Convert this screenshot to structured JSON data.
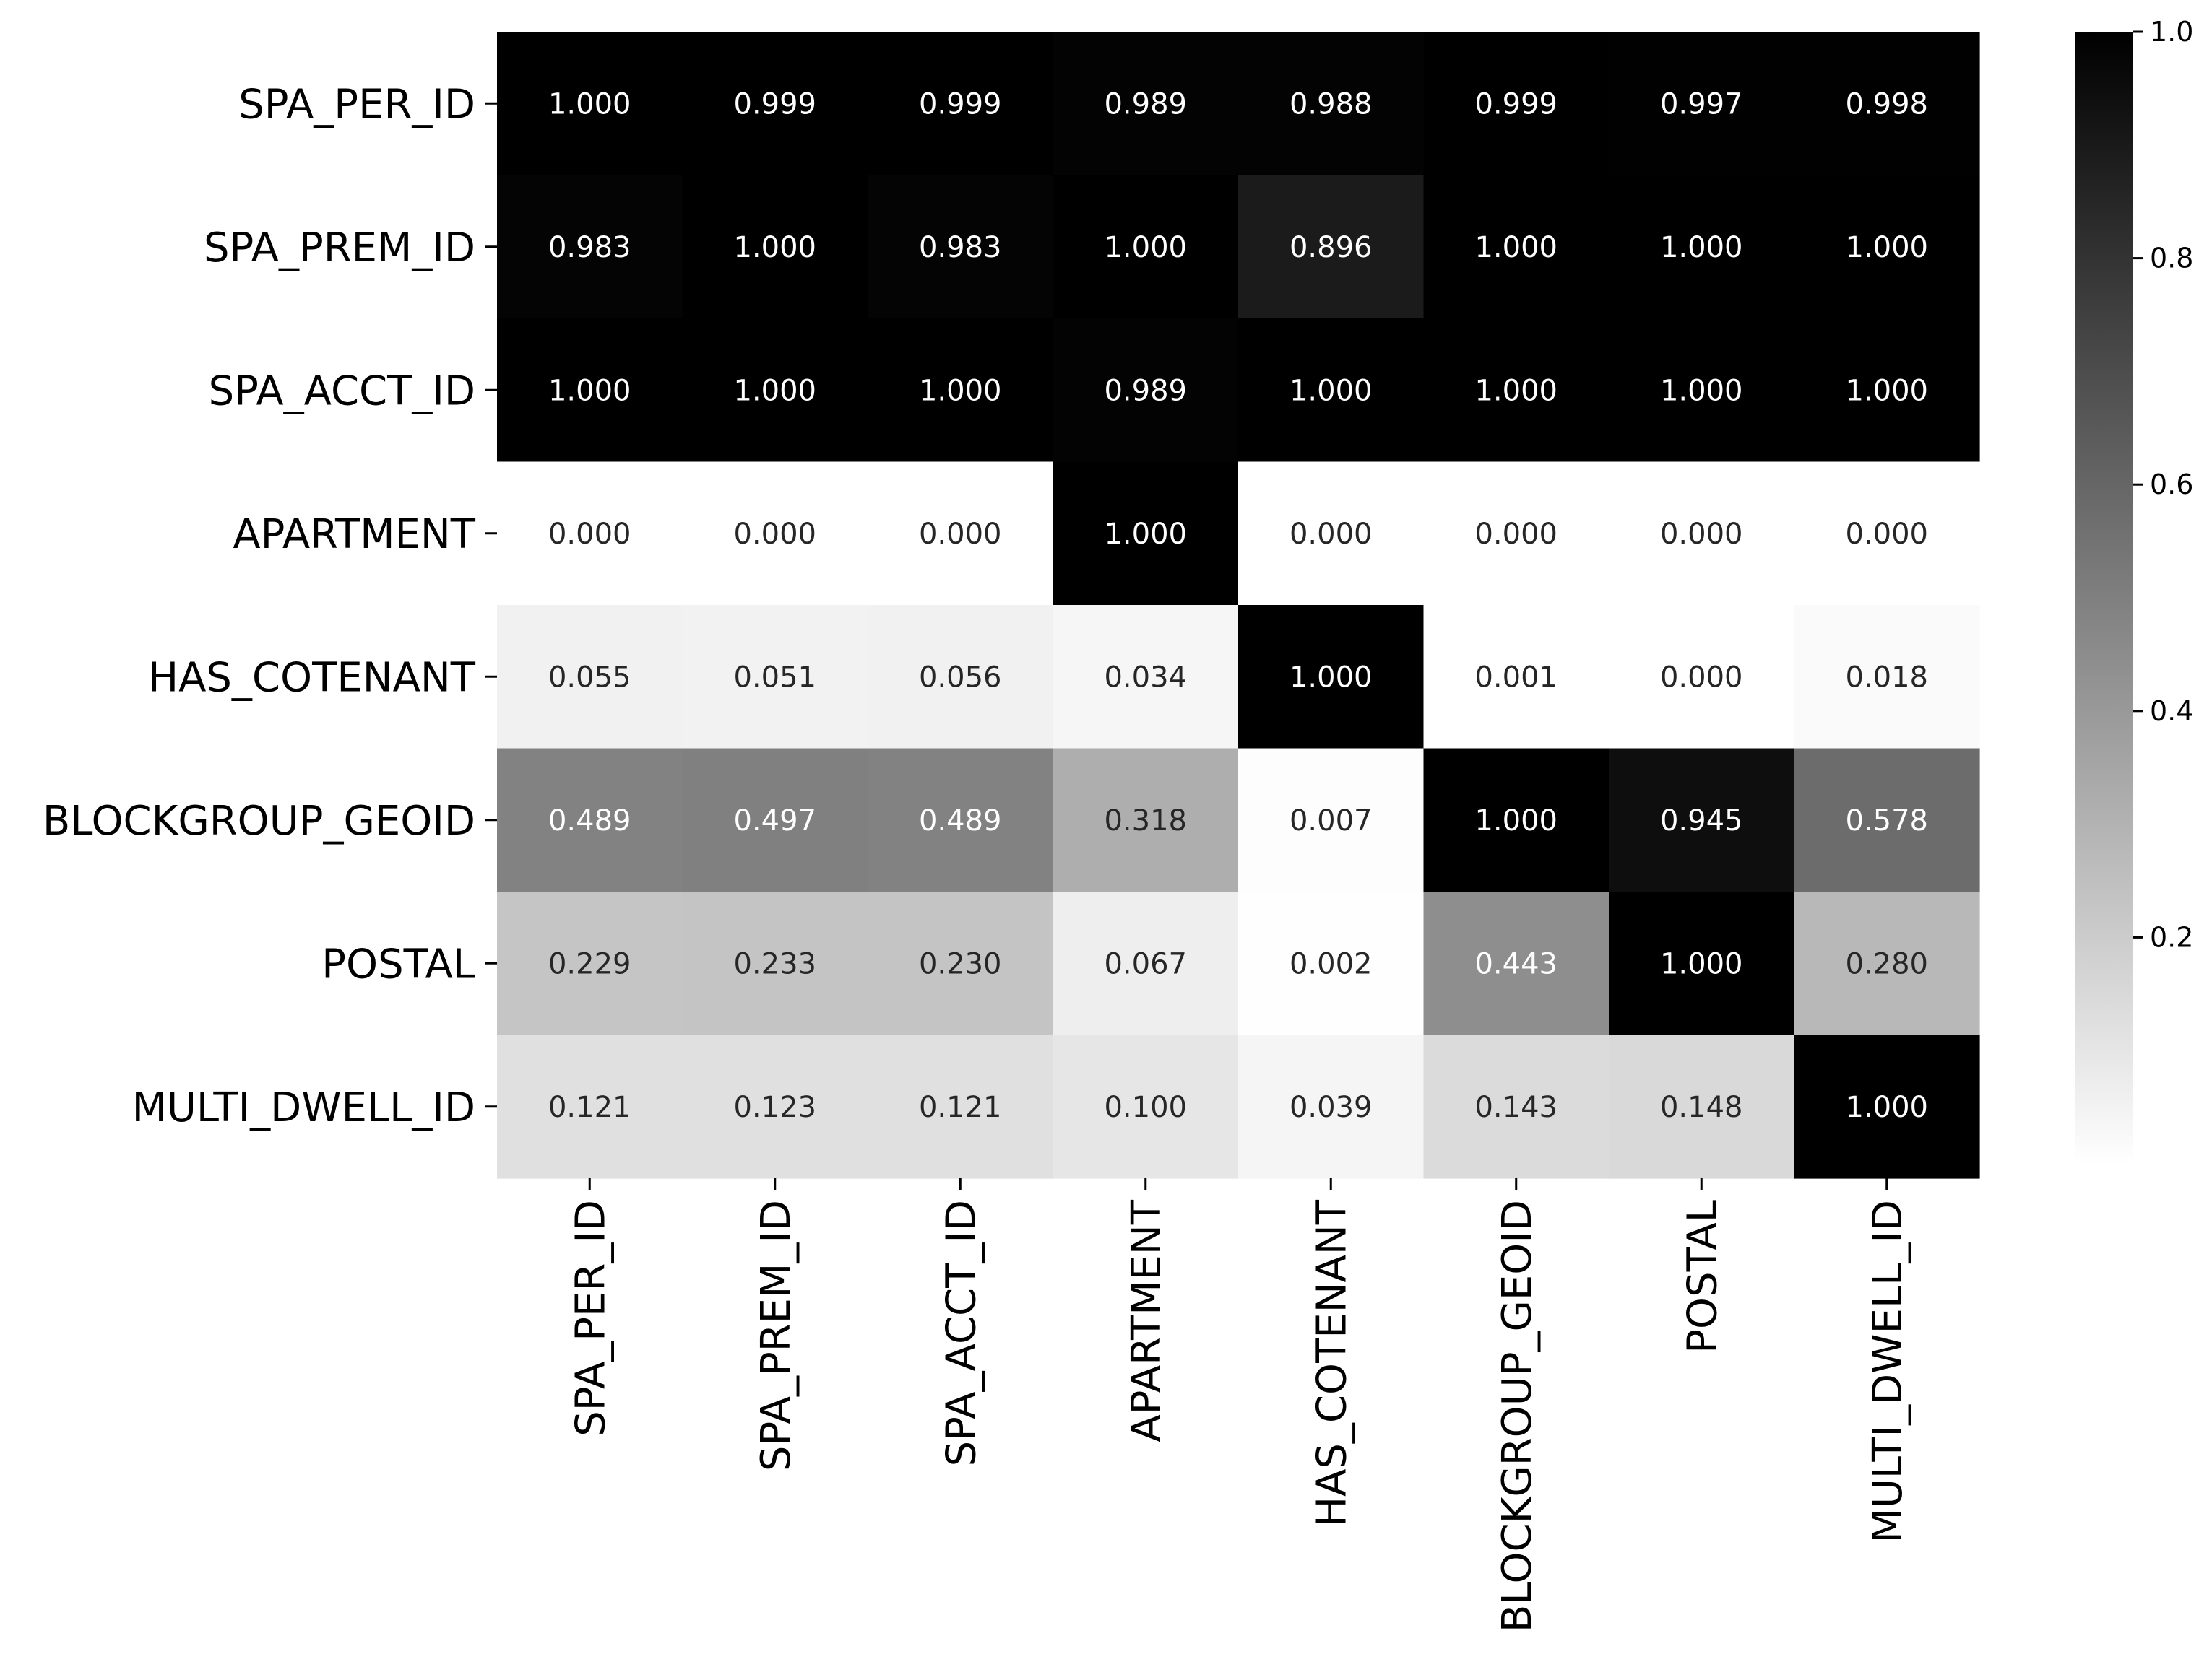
{
  "chart_data": {
    "type": "heatmap",
    "title": "",
    "xlabel": "",
    "ylabel": "",
    "rows": [
      "SPA_PER_ID",
      "SPA_PREM_ID",
      "SPA_ACCT_ID",
      "APARTMENT",
      "HAS_COTENANT",
      "BLOCKGROUP_GEOID",
      "POSTAL",
      "MULTI_DWELL_ID"
    ],
    "columns": [
      "SPA_PER_ID",
      "SPA_PREM_ID",
      "SPA_ACCT_ID",
      "APARTMENT",
      "HAS_COTENANT",
      "BLOCKGROUP_GEOID",
      "POSTAL",
      "MULTI_DWELL_ID"
    ],
    "values": [
      [
        1.0,
        0.999,
        0.999,
        0.989,
        0.988,
        0.999,
        0.997,
        0.998
      ],
      [
        0.983,
        1.0,
        0.983,
        1.0,
        0.896,
        1.0,
        1.0,
        1.0
      ],
      [
        1.0,
        1.0,
        1.0,
        0.989,
        1.0,
        1.0,
        1.0,
        1.0
      ],
      [
        0.0,
        0.0,
        0.0,
        1.0,
        0.0,
        0.0,
        0.0,
        0.0
      ],
      [
        0.055,
        0.051,
        0.056,
        0.034,
        1.0,
        0.001,
        0.0,
        0.018
      ],
      [
        0.489,
        0.497,
        0.489,
        0.318,
        0.007,
        1.0,
        0.945,
        0.578
      ],
      [
        0.229,
        0.233,
        0.23,
        0.067,
        0.002,
        0.443,
        1.0,
        0.28
      ],
      [
        0.121,
        0.123,
        0.121,
        0.1,
        0.039,
        0.143,
        0.148,
        1.0
      ]
    ],
    "value_format_decimals": 3,
    "colormap": "Greys",
    "color_low": "#ffffff",
    "color_high": "#000000",
    "colorbar": {
      "range": [
        0,
        1
      ],
      "ticks": [
        0.2,
        0.4,
        0.6,
        0.8,
        1.0
      ],
      "tick_labels": [
        "0.2",
        "0.4",
        "0.6",
        "0.8",
        "1.0"
      ],
      "placement": "right"
    }
  }
}
